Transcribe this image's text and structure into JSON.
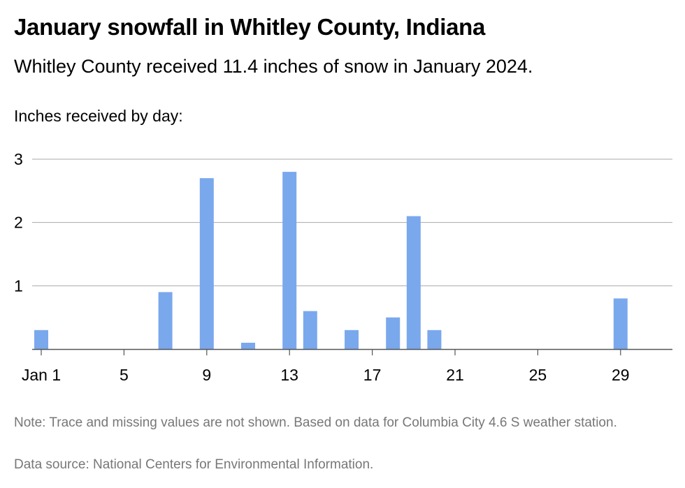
{
  "title": "January snowfall in Whitley County, Indiana",
  "subtitle": "Whitley County received 11.4 inches of snow in January 2024.",
  "ylabel": "Inches received by day:",
  "note": "Note: Trace and missing values are not shown. Based on data for Columbia City 4.6 S weather station.",
  "source": "Data source: National Centers for Environmental Information.",
  "colors": {
    "bar": "#7aa8ed",
    "grid": "#aaaaaa",
    "axis": "#555555"
  },
  "chart_data": {
    "type": "bar",
    "title": "January snowfall in Whitley County, Indiana",
    "ylabel": "Inches received by day:",
    "xlabel": "",
    "x": [
      1,
      7,
      9,
      11,
      13,
      14,
      16,
      18,
      19,
      20,
      29
    ],
    "values": [
      0.3,
      0.9,
      2.7,
      0.1,
      2.8,
      0.6,
      0.3,
      0.5,
      2.1,
      0.3,
      0.8
    ],
    "x_range": [
      1,
      31
    ],
    "ylim": [
      0,
      3
    ],
    "y_ticks": [
      1,
      2,
      3
    ],
    "x_ticks": [
      {
        "value": 1,
        "label": "Jan 1"
      },
      {
        "value": 5,
        "label": "5"
      },
      {
        "value": 9,
        "label": "9"
      },
      {
        "value": 13,
        "label": "13"
      },
      {
        "value": 17,
        "label": "17"
      },
      {
        "value": 21,
        "label": "21"
      },
      {
        "value": 25,
        "label": "25"
      },
      {
        "value": 29,
        "label": "29"
      }
    ],
    "grid": true,
    "legend": "none"
  }
}
